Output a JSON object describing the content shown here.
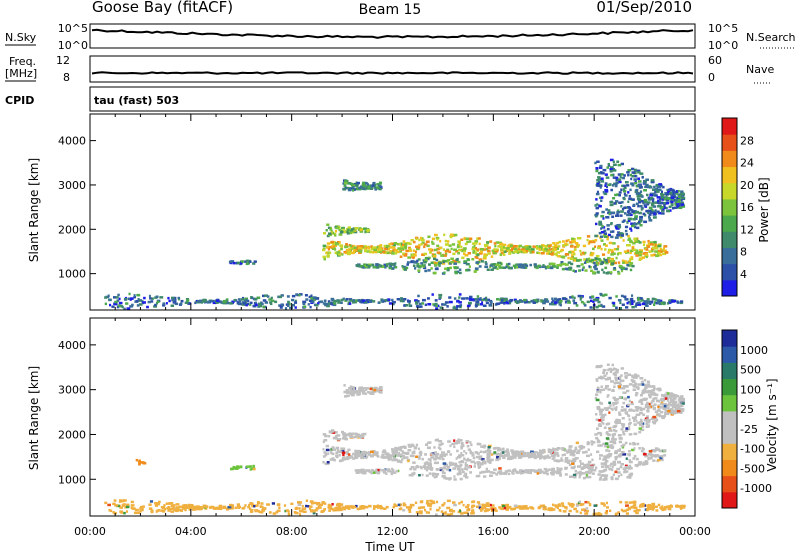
{
  "header": {
    "station": "Goose Bay (fitACF)",
    "beam": "Beam 15",
    "date": "01/Sep/2010"
  },
  "top_strip": {
    "left_label": "N.Sky",
    "right_label": "N.Search",
    "left_ticks": [
      "10^5",
      "10^0"
    ],
    "right_ticks": [
      "10^5",
      "10^0"
    ]
  },
  "mid_strip": {
    "left_label_1": "Freq.",
    "left_label_2": "[MHz]",
    "right_label": "Nave",
    "left_ticks": [
      "12",
      "8"
    ],
    "right_ticks": [
      "60",
      "0"
    ]
  },
  "cpid": {
    "label": "CPID",
    "value": "tau (fast) 503"
  },
  "colors": {
    "power": [
      "#1e1ee6",
      "#2c4fa8",
      "#3a6e9a",
      "#3f8a6a",
      "#4ca84c",
      "#7cc43c",
      "#c8d82a",
      "#f0c020",
      "#f08a1a",
      "#e8501a",
      "#e01818"
    ],
    "velocity": [
      "#1e2c9a",
      "#2c5aa8",
      "#2a7a6a",
      "#3a9a3a",
      "#6cc43c",
      "#c0c0c0",
      "#c0c0c0",
      "#f0b040",
      "#f08a1a",
      "#e8501a",
      "#e01818"
    ]
  },
  "chart_data": [
    {
      "type": "heatmap",
      "name": "power",
      "ylabel": "Slant Range [km]",
      "xlabel": "",
      "colorbar_label": "Power [dB]",
      "colorbar_ticks": [
        "4",
        "8",
        "12",
        "16",
        "20",
        "24",
        "28"
      ],
      "xlim": [
        "00:00",
        "24:00"
      ],
      "ylim": [
        180,
        4600
      ],
      "yticks": [
        1000,
        2000,
        3000,
        4000
      ],
      "regions": [
        {
          "t0": 9.2,
          "t1": 22.8,
          "r_center": 1580,
          "r_half": 350,
          "value": 19
        },
        {
          "t0": 9.2,
          "t1": 11.0,
          "r_center": 2000,
          "r_half": 220,
          "value": 14
        },
        {
          "t0": 10.5,
          "t1": 21.5,
          "r_center": 1200,
          "r_half": 180,
          "value": 10
        },
        {
          "t0": 10.0,
          "t1": 11.5,
          "r_center": 3000,
          "r_half": 350,
          "value": 8
        },
        {
          "t0": 5.5,
          "t1": 6.5,
          "r_center": 1280,
          "r_half": 80,
          "value": 7
        },
        {
          "t0": 0.5,
          "t1": 23.5,
          "r_center": 400,
          "r_half": 170,
          "value": 6
        },
        {
          "t0": 20.0,
          "t1": 23.5,
          "r_center": 2700,
          "r_half": 900,
          "value": 6
        }
      ]
    },
    {
      "type": "heatmap",
      "name": "velocity",
      "ylabel": "Slant Range [km]",
      "xlabel": "Time UT",
      "colorbar_label": "Velocity [m s⁻¹]",
      "colorbar_ticks": [
        "-1000",
        "-500",
        "-100",
        "-25",
        "25",
        "100",
        "500",
        "1000"
      ],
      "xlim": [
        "00:00",
        "24:00"
      ],
      "xticks": [
        "00:00",
        "04:00",
        "08:00",
        "12:00",
        "16:00",
        "20:00",
        "00:00"
      ],
      "ylim": [
        180,
        4600
      ],
      "yticks": [
        1000,
        2000,
        3000,
        4000
      ],
      "regions": [
        {
          "t0": 9.2,
          "t1": 22.8,
          "r_center": 1580,
          "r_half": 350,
          "value": 0
        },
        {
          "t0": 9.2,
          "t1": 11.0,
          "r_center": 2000,
          "r_half": 220,
          "value": 0
        },
        {
          "t0": 10.5,
          "t1": 21.5,
          "r_center": 1200,
          "r_half": 180,
          "value": 0
        },
        {
          "t0": 10.0,
          "t1": 11.5,
          "r_center": 3000,
          "r_half": 350,
          "value": 0
        },
        {
          "t0": 5.5,
          "t1": 6.5,
          "r_center": 1280,
          "r_half": 80,
          "value": 100
        },
        {
          "t0": 1.8,
          "t1": 2.1,
          "r_center": 1400,
          "r_half": 60,
          "value": -100
        },
        {
          "t0": 0.5,
          "t1": 23.5,
          "r_center": 400,
          "r_half": 170,
          "value": -25
        },
        {
          "t0": 20.0,
          "t1": 23.5,
          "r_center": 2700,
          "r_half": 900,
          "value": 0
        }
      ]
    }
  ]
}
